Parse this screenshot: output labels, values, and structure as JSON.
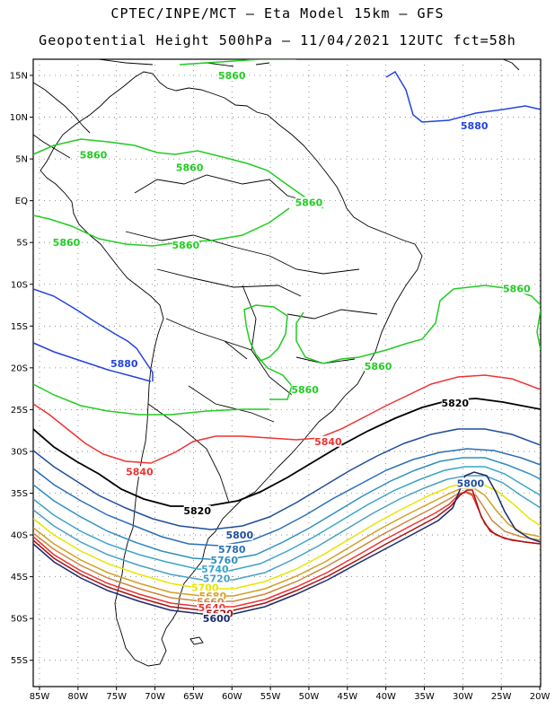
{
  "title_line1": "CPTEC/INPE/MCT –  Eta Model 15km – GFS",
  "title_line2": "Geopotential Height 500hPa – 11/04/2021 12UTC fct=58h",
  "lat_ticks": [
    "15N",
    "10N",
    "5N",
    "EQ",
    "5S",
    "10S",
    "15S",
    "20S",
    "25S",
    "30S",
    "35S",
    "40S",
    "45S",
    "50S",
    "55S"
  ],
  "lon_ticks": [
    "85W",
    "80W",
    "75W",
    "70W",
    "65W",
    "60W",
    "55W",
    "50W",
    "45W",
    "40W",
    "35W",
    "30W",
    "25W",
    "20W"
  ],
  "colors": {
    "5880": "#2244dd",
    "5860": "#22cc22",
    "5840": "#ee3333",
    "5820": "#000000",
    "5800": "#1f4e9a",
    "5780": "#2a6fb5",
    "5760": "#2f8fbf",
    "5740": "#3aa6c8",
    "5720": "#4aa0c0",
    "5700": "#e6e600",
    "5680": "#d4a020",
    "5660": "#cc8840",
    "5640": "#ee3333",
    "5620": "#aa1111",
    "5600": "#1a2a6c"
  },
  "contour_labels": [
    {
      "text": "5860",
      "color": "5860",
      "lon": -60.0,
      "lat": 15.0
    },
    {
      "text": "5880",
      "color": "5880",
      "lon": -28.5,
      "lat": 9.0
    },
    {
      "text": "5860",
      "color": "5860",
      "lon": -78.0,
      "lat": 5.5
    },
    {
      "text": "5860",
      "color": "5860",
      "lon": -65.5,
      "lat": 4.0
    },
    {
      "text": "5860",
      "color": "5860",
      "lon": -50.0,
      "lat": -0.2
    },
    {
      "text": "5860",
      "color": "5860",
      "lon": -81.5,
      "lat": -5.0
    },
    {
      "text": "5860",
      "color": "5860",
      "lon": -66.0,
      "lat": -5.3
    },
    {
      "text": "5860",
      "color": "5860",
      "lon": -23.0,
      "lat": -10.5
    },
    {
      "text": "5880",
      "color": "5880",
      "lon": -74.0,
      "lat": -19.5
    },
    {
      "text": "5860",
      "color": "5860",
      "lon": -41.0,
      "lat": -19.8
    },
    {
      "text": "5860",
      "color": "5860",
      "lon": -50.5,
      "lat": -22.6
    },
    {
      "text": "5820",
      "color": "5820",
      "lon": -31.0,
      "lat": -24.2
    },
    {
      "text": "5840",
      "color": "5840",
      "lon": -47.5,
      "lat": -28.8
    },
    {
      "text": "5840",
      "color": "5840",
      "lon": -72.0,
      "lat": -32.4
    },
    {
      "text": "5800",
      "color": "5800",
      "lon": -29.0,
      "lat": -33.8
    },
    {
      "text": "5820",
      "color": "5820",
      "lon": -64.5,
      "lat": -37.1
    },
    {
      "text": "5800",
      "color": "5800",
      "lon": -59.0,
      "lat": -40.0
    },
    {
      "text": "5780",
      "color": "5780",
      "lon": -60.0,
      "lat": -41.7
    },
    {
      "text": "5760",
      "color": "5760",
      "lon": -61.0,
      "lat": -43.0
    },
    {
      "text": "5740",
      "color": "5740",
      "lon": -62.2,
      "lat": -44.1
    },
    {
      "text": "5720",
      "color": "5720",
      "lon": -62.0,
      "lat": -45.2
    },
    {
      "text": "5700",
      "color": "5700",
      "lon": -63.5,
      "lat": -46.3
    },
    {
      "text": "5680",
      "color": "5680",
      "lon": -62.5,
      "lat": -47.3
    },
    {
      "text": "5660",
      "color": "5660",
      "lon": -62.8,
      "lat": -48.0
    },
    {
      "text": "5640",
      "color": "5640",
      "lon": -62.6,
      "lat": -48.7
    },
    {
      "text": "5620",
      "color": "5620",
      "lon": -61.6,
      "lat": -49.4
    },
    {
      "text": "5600",
      "color": "5600",
      "lon": -62.0,
      "lat": -50.0
    }
  ]
}
